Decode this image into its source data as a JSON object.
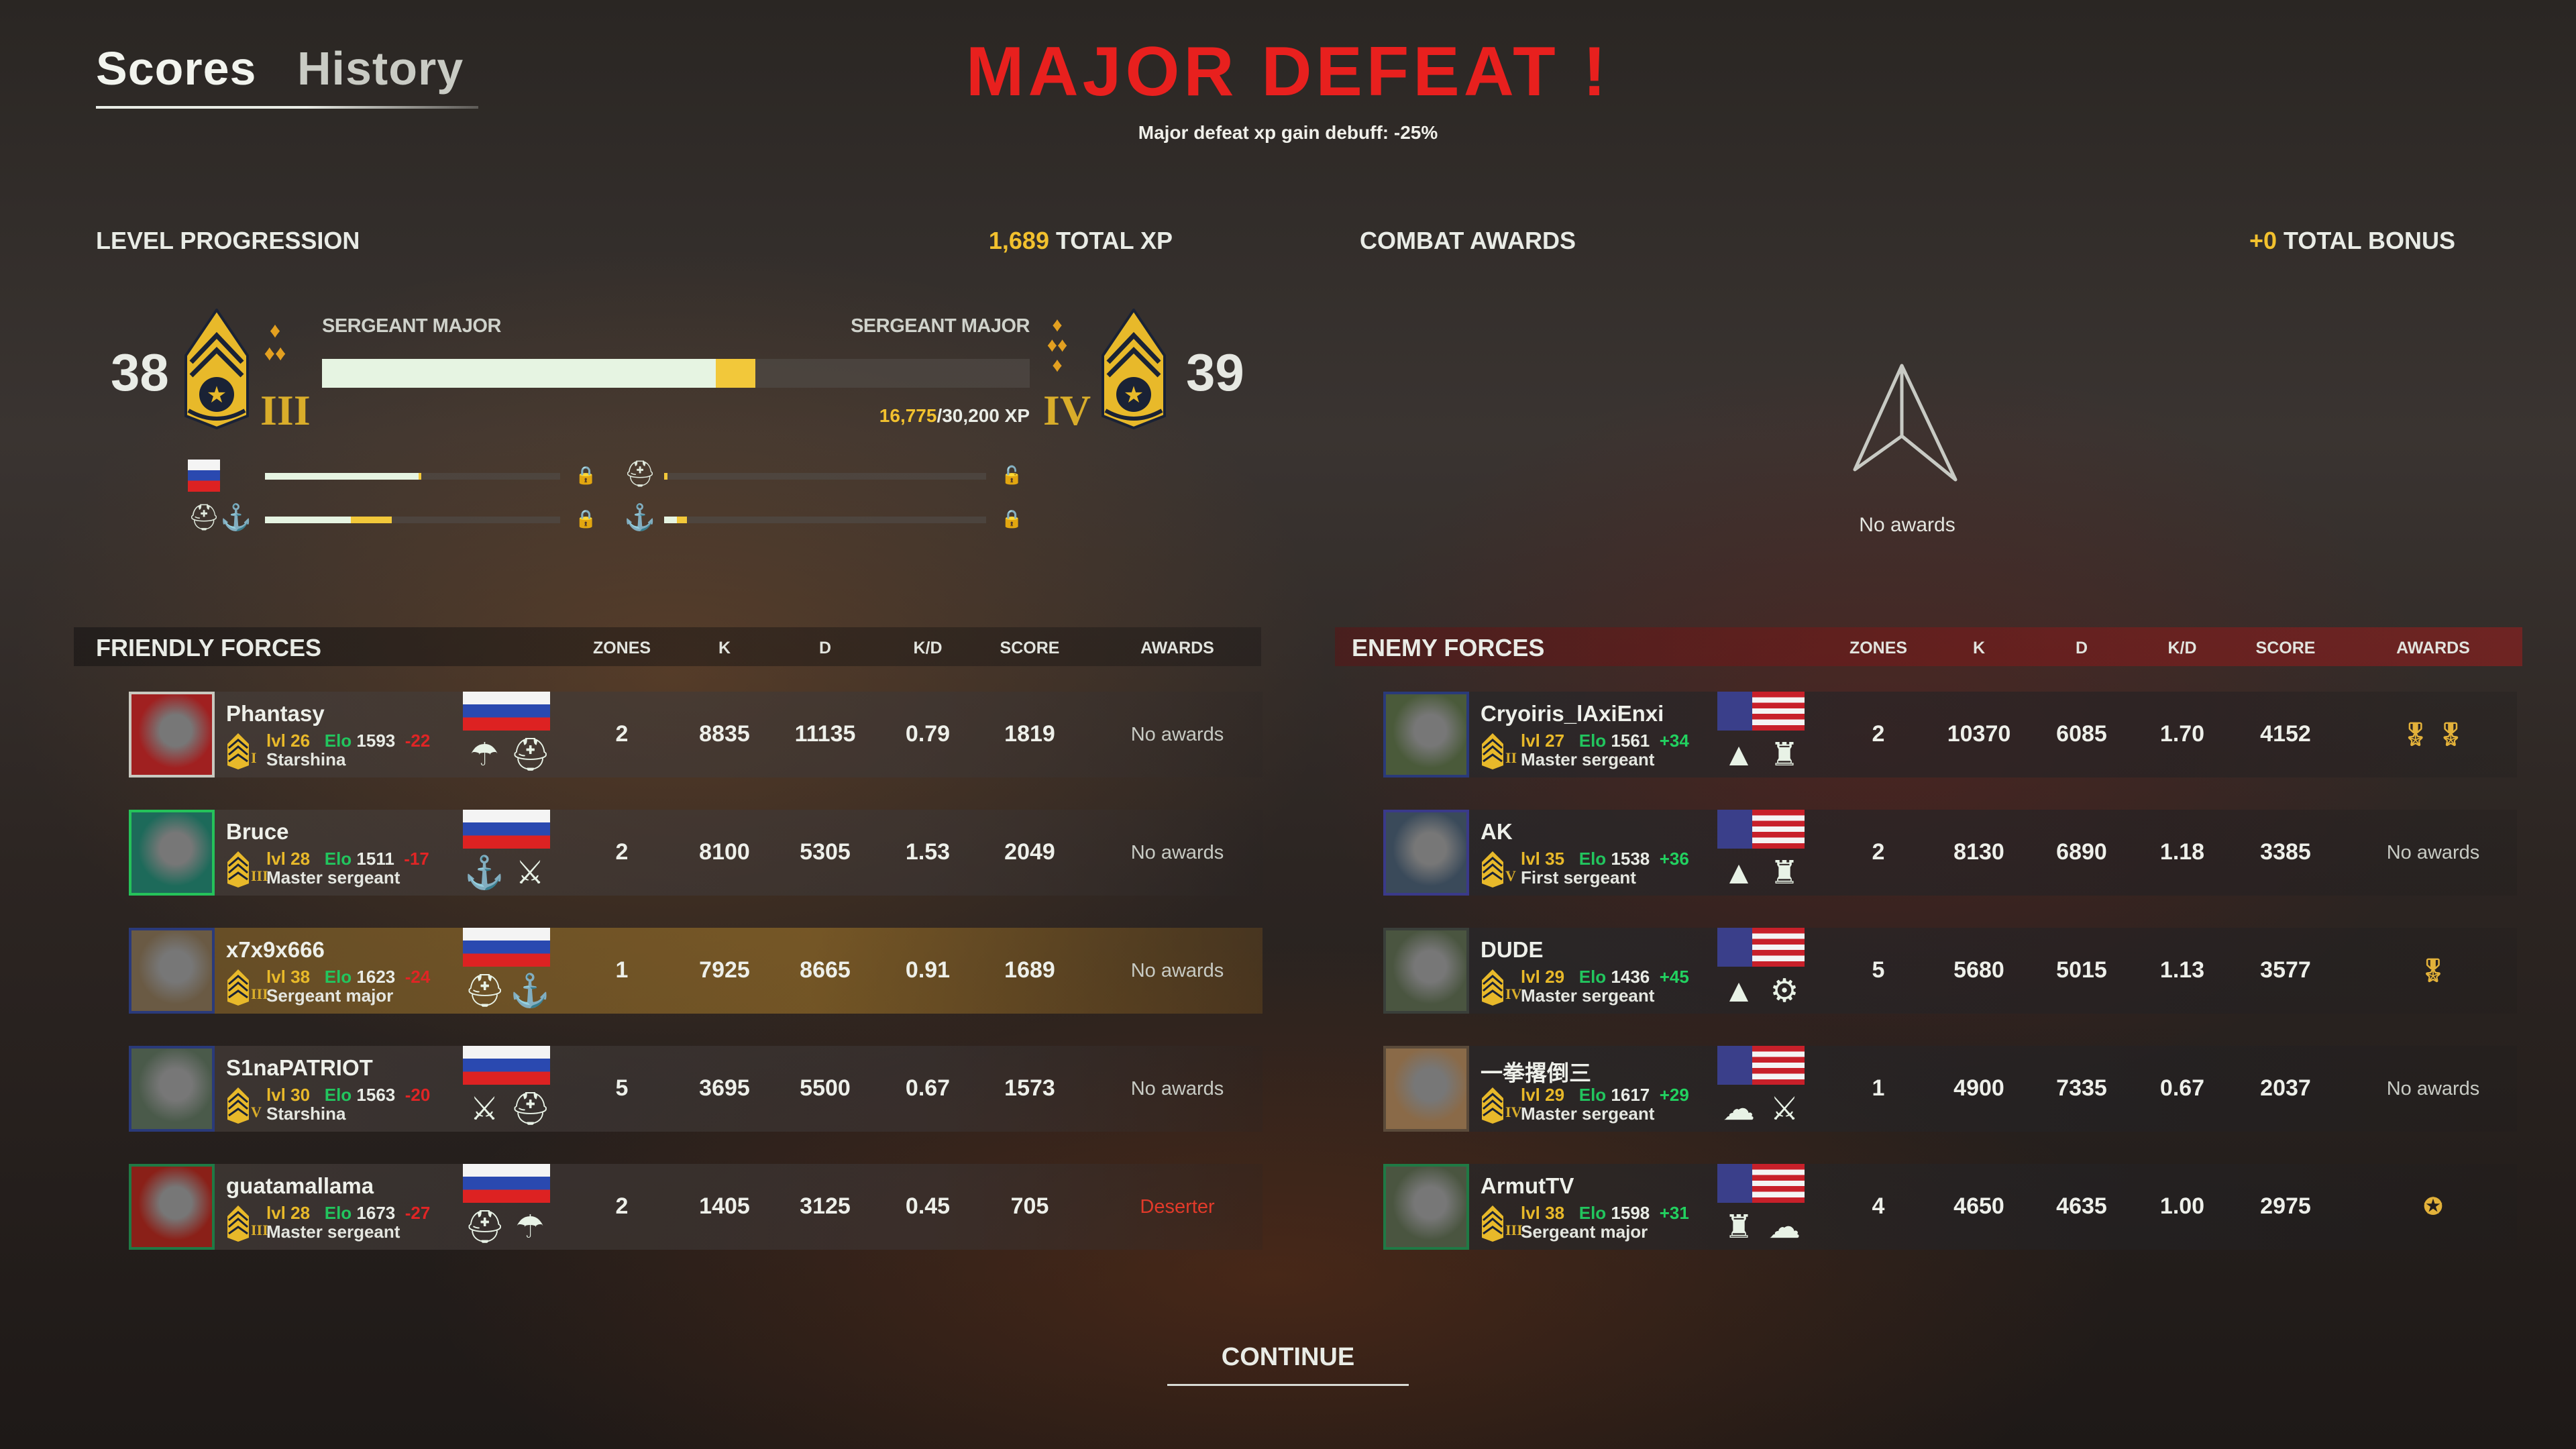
{
  "tabs": {
    "scores": "Scores",
    "history": "History"
  },
  "header": {
    "title": "MAJOR DEFEAT !",
    "subtitle": "Major defeat xp gain debuff: -25%"
  },
  "level_progression": {
    "title": "LEVEL PROGRESSION",
    "total_xp_value": "1,689",
    "total_xp_label": " TOTAL XP",
    "current_level": "38",
    "current_rank": "SERGEANT MAJOR",
    "current_grade": "III",
    "next_level": "39",
    "next_rank": "SERGEANT MAJOR",
    "next_grade": "IV",
    "xp_current": "16,775",
    "xp_total": "/30,200 XP",
    "progress_fraction": 0.556,
    "gain_fraction": 0.056,
    "sub_progress": [
      {
        "icon": "russia-flag-icon",
        "fill": 0.52,
        "gain": 0.01,
        "lock": "lock-icon",
        "locked": true
      },
      {
        "icon": "tank-crew-icon",
        "fill": 0.0,
        "gain": 0.01,
        "lock": "lock-open-icon",
        "locked": false
      },
      {
        "icon": "tank-crew-anchor-icon",
        "fill": 0.29,
        "gain": 0.14,
        "lock": "lock-icon",
        "locked": true
      },
      {
        "icon": "anchor-icon",
        "fill": 0.04,
        "gain": 0.03,
        "lock": "lock-icon",
        "locked": true
      }
    ]
  },
  "combat_awards": {
    "title": "COMBAT AWARDS",
    "bonus_value": "+0",
    "bonus_label": " TOTAL BONUS",
    "empty_text": "No awards"
  },
  "friendly": {
    "title": "FRIENDLY FORCES",
    "columns": [
      "ZONES",
      "K",
      "D",
      "K/D",
      "SCORE",
      "AWARDS"
    ],
    "players": [
      {
        "name": "Phantasy",
        "lvl": "lvl 26",
        "elo_label": "Elo",
        "elo": "1593",
        "elo_delta": "-22",
        "rank": "Starshina",
        "grade": "I",
        "flag": "russia",
        "units": [
          "paratrooper-icon",
          "tank-crew-icon"
        ],
        "zones": "2",
        "k": "8835",
        "d": "11135",
        "kd": "0.79",
        "score": "1819",
        "awards": "No awards",
        "avatar_color": "#a02020",
        "frame": "#c9c9c0"
      },
      {
        "name": "Bruce",
        "lvl": "lvl 28",
        "elo_label": "Elo",
        "elo": "1511",
        "elo_delta": "-17",
        "rank": "Master sergeant",
        "grade": "III",
        "flag": "russia",
        "units": [
          "anchor-icon",
          "crossed-rifles-icon"
        ],
        "zones": "2",
        "k": "8100",
        "d": "5305",
        "kd": "1.53",
        "score": "2049",
        "awards": "No awards",
        "avatar_color": "#1d6a5a",
        "frame": "#25c25a"
      },
      {
        "name": "x7x9x666",
        "lvl": "lvl 38",
        "elo_label": "Elo",
        "elo": "1623",
        "elo_delta": "-24",
        "rank": "Sergeant major",
        "grade": "III",
        "flag": "russia",
        "units": [
          "tank-crew-icon",
          "anchor-icon"
        ],
        "zones": "1",
        "k": "7925",
        "d": "8665",
        "kd": "0.91",
        "score": "1689",
        "awards": "No awards",
        "avatar_color": "#6a5a44",
        "frame": "#2a3a7a",
        "self": true
      },
      {
        "name": "S1naPATRIOT",
        "lvl": "lvl 30",
        "elo_label": "Elo",
        "elo": "1563",
        "elo_delta": "-20",
        "rank": "Starshina",
        "grade": "V",
        "flag": "russia",
        "units": [
          "crossed-rifles-icon",
          "tank-crew-icon"
        ],
        "zones": "5",
        "k": "3695",
        "d": "5500",
        "kd": "0.67",
        "score": "1573",
        "awards": "No awards",
        "avatar_color": "#4a5a4a",
        "frame": "#2a3a7a"
      },
      {
        "name": "guatamallama",
        "lvl": "lvl 28",
        "elo_label": "Elo",
        "elo": "1673",
        "elo_delta": "-27",
        "rank": "Master sergeant",
        "grade": "III",
        "flag": "russia",
        "units": [
          "tank-crew-icon",
          "paratrooper-icon"
        ],
        "zones": "2",
        "k": "1405",
        "d": "3125",
        "kd": "0.45",
        "score": "705",
        "awards": "Deserter",
        "avatar_color": "#8a2018",
        "frame": "#1f7a45"
      }
    ]
  },
  "enemy": {
    "title": "ENEMY FORCES",
    "columns": [
      "ZONES",
      "K",
      "D",
      "K/D",
      "SCORE",
      "AWARDS"
    ],
    "players": [
      {
        "name": "Cryoiris_lAxiEnxi",
        "lvl": "lvl 27",
        "elo_label": "Elo",
        "elo": "1561",
        "elo_delta": "+34",
        "rank": "Master sergeant",
        "grade": "II",
        "flag": "usa",
        "units": [
          "mountain-unit-icon",
          "infantry-helmet-icon"
        ],
        "zones": "2",
        "k": "10370",
        "d": "6085",
        "kd": "1.70",
        "score": "4152",
        "awards": "",
        "award_icons": [
          "medal-icon",
          "medal-icon"
        ],
        "avatar_color": "#4a5a3a",
        "frame": "#2a3a7a"
      },
      {
        "name": "AK",
        "lvl": "lvl 35",
        "elo_label": "Elo",
        "elo": "1538",
        "elo_delta": "+36",
        "rank": "First sergeant",
        "grade": "V",
        "flag": "usa",
        "units": [
          "mountain-unit-icon",
          "infantry-helmet-icon"
        ],
        "zones": "2",
        "k": "8130",
        "d": "6890",
        "kd": "1.18",
        "score": "3385",
        "awards": "No awards",
        "avatar_color": "#3a4a5a",
        "frame": "#3a3a8a"
      },
      {
        "name": "DUDE",
        "lvl": "lvl 29",
        "elo_label": "Elo",
        "elo": "1436",
        "elo_delta": "+45",
        "rank": "Master sergeant",
        "grade": "IV",
        "flag": "usa",
        "units": [
          "mountain-unit-icon",
          "marines-icon"
        ],
        "zones": "5",
        "k": "5680",
        "d": "5015",
        "kd": "1.13",
        "score": "3577",
        "awards": "",
        "award_icons": [
          "medal-icon"
        ],
        "avatar_color": "#4a5540",
        "frame": "#3a3f3a"
      },
      {
        "name": "一拳撂倒三",
        "lvl": "lvl 29",
        "elo_label": "Elo",
        "elo": "1617",
        "elo_delta": "+29",
        "rank": "Master sergeant",
        "grade": "IV",
        "flag": "usa",
        "units": [
          "airborne-wings-icon",
          "cavalry-icon"
        ],
        "zones": "1",
        "k": "4900",
        "d": "7335",
        "kd": "0.67",
        "score": "2037",
        "awards": "No awards",
        "avatar_color": "#8a6a48",
        "frame": "#5a4a3a"
      },
      {
        "name": "ArmutTV",
        "lvl": "lvl 38",
        "elo_label": "Elo",
        "elo": "1598",
        "elo_delta": "+31",
        "rank": "Sergeant major",
        "grade": "III",
        "flag": "usa",
        "units": [
          "infantry-helmet-icon",
          "airborne-wings-icon"
        ],
        "zones": "4",
        "k": "4650",
        "d": "4635",
        "kd": "1.00",
        "score": "2975",
        "awards": "",
        "award_icons": [
          "medal-badge-icon"
        ],
        "avatar_color": "#4a5540",
        "frame": "#1f7a45"
      }
    ]
  },
  "footer": {
    "continue": "CONTINUE"
  },
  "colors": {
    "defeat_red": "#e8201e",
    "accent_yellow": "#f2c12e",
    "elo_green": "#22c55e",
    "loss_red": "#e02525",
    "gain_green": "#22d160"
  }
}
